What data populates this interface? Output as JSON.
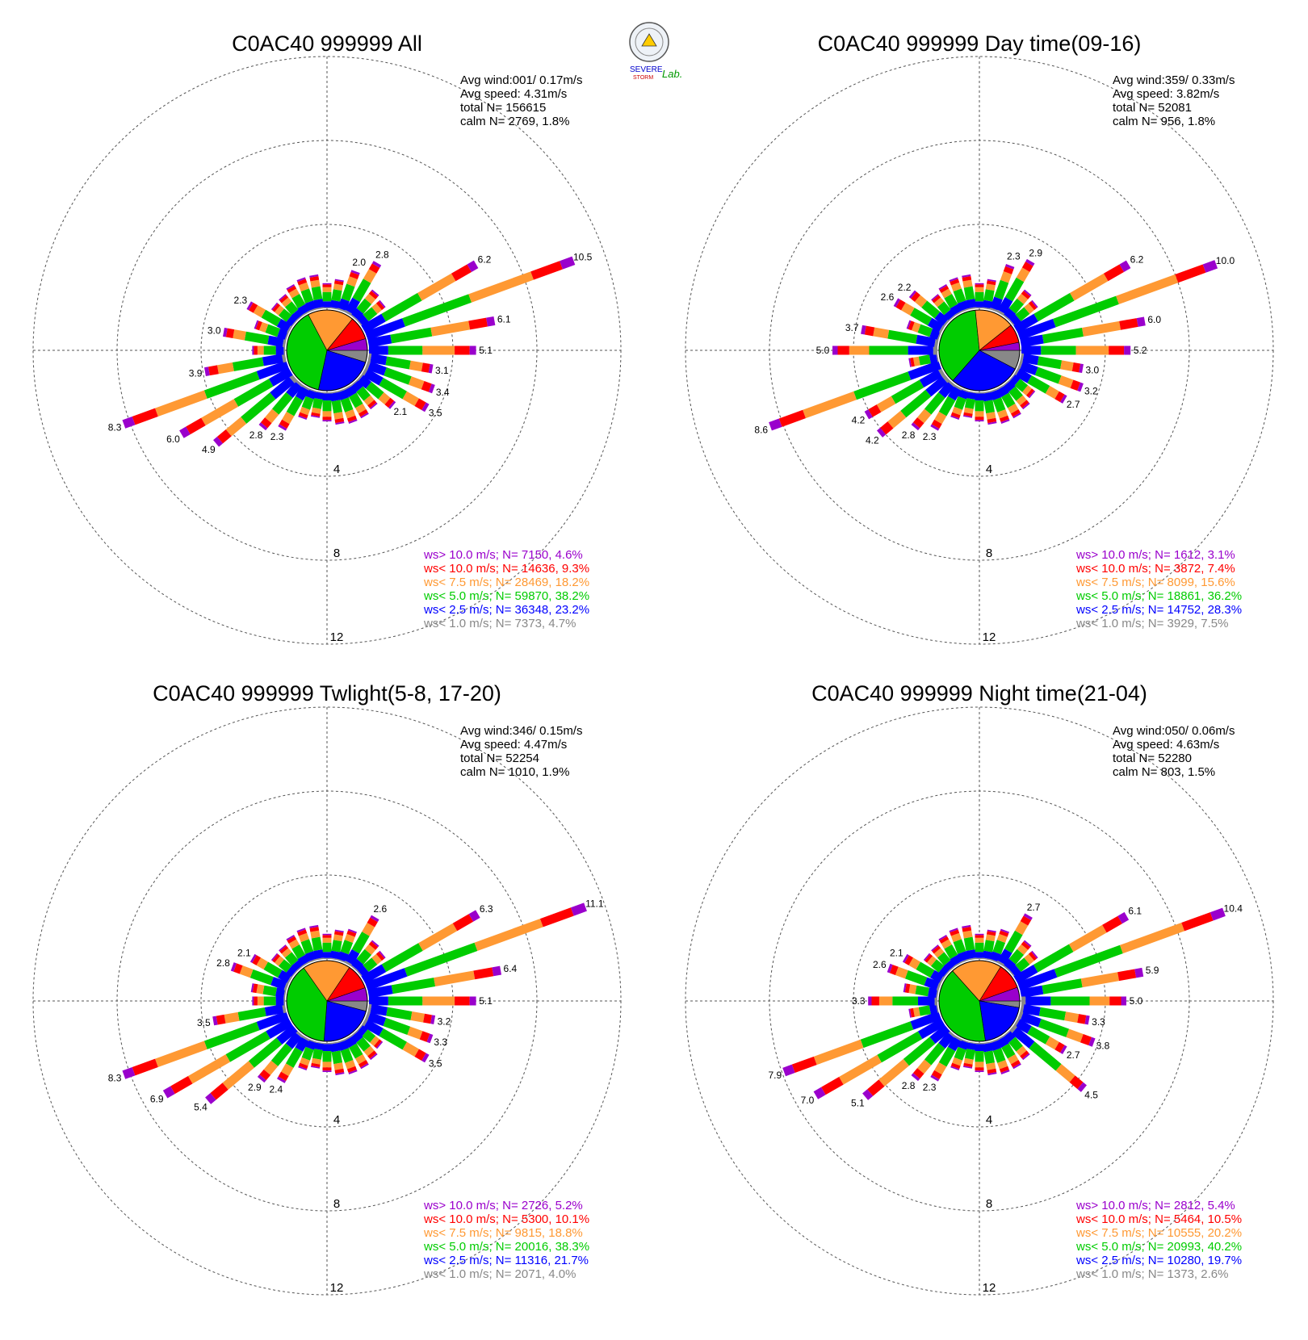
{
  "logo": {
    "line1": "SEVERE",
    "line2": "STORM",
    "line3": "Lab."
  },
  "colors": {
    "gt10": "#9a00cc",
    "lt10": "#ff0000",
    "lt75": "#ff9933",
    "lt5": "#00cc00",
    "lt25": "#0000ff",
    "lt1": "#888888"
  },
  "chart_data": [
    {
      "type": "wind-rose",
      "title": "C0AC40 999999 All",
      "stats": {
        "avg_wind": "Avg wind:001/ 0.17m/s",
        "avg_speed": "Avg speed: 4.31m/s",
        "total": "total N=      156615",
        "calm": "calm N=   2769,   1.8%"
      },
      "rings": [
        4,
        8,
        12
      ],
      "legend": [
        {
          "label": "ws> 10.0 m/s; N=  7150,  4.6%",
          "key": "gt10"
        },
        {
          "label": "ws< 10.0 m/s; N= 14636,  9.3%",
          "key": "lt10"
        },
        {
          "label": "ws<  7.5 m/s; N= 28469, 18.2%",
          "key": "lt75"
        },
        {
          "label": "ws<  5.0 m/s; N= 59870, 38.2%",
          "key": "lt5"
        },
        {
          "label": "ws<  2.5 m/s; N= 36348, 23.2%",
          "key": "lt25"
        },
        {
          "label": "ws<  1.0 m/s; N=  7373,  4.7%",
          "key": "lt1"
        }
      ],
      "calm_pie": [
        4.7,
        23.2,
        38.2,
        18.2,
        9.3,
        4.6
      ],
      "petal_labels": [
        {
          "dir": 70,
          "label": "10.5"
        },
        {
          "dir": 60,
          "label": "6.2"
        },
        {
          "dir": 80,
          "label": "6.1"
        },
        {
          "dir": 90,
          "label": "5.1"
        },
        {
          "dir": 100,
          "label": "3.1"
        },
        {
          "dir": 110,
          "label": "3.4"
        },
        {
          "dir": 120,
          "label": "3.5"
        },
        {
          "dir": 130,
          "label": "2.1"
        },
        {
          "dir": 30,
          "label": "2.8"
        },
        {
          "dir": 20,
          "label": "2.0"
        },
        {
          "dir": 250,
          "label": "8.3"
        },
        {
          "dir": 240,
          "label": "6.0"
        },
        {
          "dir": 230,
          "label": "4.9"
        },
        {
          "dir": 220,
          "label": "2.8"
        },
        {
          "dir": 210,
          "label": "2.3"
        },
        {
          "dir": 260,
          "label": "3.9"
        },
        {
          "dir": 280,
          "label": "3.0"
        },
        {
          "dir": 300,
          "label": "2.3"
        }
      ]
    },
    {
      "type": "wind-rose",
      "title": "C0AC40 999999 Day time(09-16)",
      "stats": {
        "avg_wind": "Avg wind:359/ 0.33m/s",
        "avg_speed": "Avg speed: 3.82m/s",
        "total": "total N=      52081",
        "calm": "calm N=    956,   1.8%"
      },
      "rings": [
        4,
        8,
        12
      ],
      "legend": [
        {
          "label": "ws> 10.0 m/s; N=  1612,  3.1%",
          "key": "gt10"
        },
        {
          "label": "ws< 10.0 m/s; N=  3872,  7.4%",
          "key": "lt10"
        },
        {
          "label": "ws<  7.5 m/s; N=  8099, 15.6%",
          "key": "lt75"
        },
        {
          "label": "ws<  5.0 m/s; N= 18861, 36.2%",
          "key": "lt5"
        },
        {
          "label": "ws<  2.5 m/s; N= 14752, 28.3%",
          "key": "lt25"
        },
        {
          "label": "ws<  1.0 m/s; N=  3929,  7.5%",
          "key": "lt1"
        }
      ],
      "calm_pie": [
        7.5,
        28.3,
        36.2,
        15.6,
        7.4,
        3.1
      ],
      "petal_labels": [
        {
          "dir": 70,
          "label": "10.0"
        },
        {
          "dir": 60,
          "label": "6.2"
        },
        {
          "dir": 80,
          "label": "6.0"
        },
        {
          "dir": 90,
          "label": "5.2"
        },
        {
          "dir": 100,
          "label": "3.0"
        },
        {
          "dir": 110,
          "label": "3.2"
        },
        {
          "dir": 120,
          "label": "2.7"
        },
        {
          "dir": 30,
          "label": "2.9"
        },
        {
          "dir": 20,
          "label": "2.3"
        },
        {
          "dir": 250,
          "label": "8.6"
        },
        {
          "dir": 240,
          "label": "4.2"
        },
        {
          "dir": 230,
          "label": "4.2"
        },
        {
          "dir": 220,
          "label": "2.8"
        },
        {
          "dir": 210,
          "label": "2.3"
        },
        {
          "dir": 270,
          "label": "5.0"
        },
        {
          "dir": 280,
          "label": "3.7"
        },
        {
          "dir": 300,
          "label": "2.6"
        },
        {
          "dir": 310,
          "label": "2.2"
        }
      ]
    },
    {
      "type": "wind-rose",
      "title": "C0AC40 999999 Twlight(5-8, 17-20)",
      "stats": {
        "avg_wind": "Avg wind:346/ 0.15m/s",
        "avg_speed": "Avg speed: 4.47m/s",
        "total": "total N=      52254",
        "calm": "calm N=   1010,   1.9%"
      },
      "rings": [
        4,
        8,
        12
      ],
      "legend": [
        {
          "label": "ws> 10.0 m/s; N=  2726,  5.2%",
          "key": "gt10"
        },
        {
          "label": "ws< 10.0 m/s; N=  5300, 10.1%",
          "key": "lt10"
        },
        {
          "label": "ws<  7.5 m/s; N=  9815, 18.8%",
          "key": "lt75"
        },
        {
          "label": "ws<  5.0 m/s; N= 20016, 38.3%",
          "key": "lt5"
        },
        {
          "label": "ws<  2.5 m/s; N= 11316, 21.7%",
          "key": "lt25"
        },
        {
          "label": "ws<  1.0 m/s; N=  2071,  4.0%",
          "key": "lt1"
        }
      ],
      "calm_pie": [
        4.0,
        21.7,
        38.3,
        18.8,
        10.1,
        5.2
      ],
      "petal_labels": [
        {
          "dir": 70,
          "label": "11.1"
        },
        {
          "dir": 60,
          "label": "6.3"
        },
        {
          "dir": 80,
          "label": "6.4"
        },
        {
          "dir": 90,
          "label": "5.1"
        },
        {
          "dir": 100,
          "label": "3.2"
        },
        {
          "dir": 110,
          "label": "3.3"
        },
        {
          "dir": 120,
          "label": "3.5"
        },
        {
          "dir": 30,
          "label": "2.6"
        },
        {
          "dir": 250,
          "label": "8.3"
        },
        {
          "dir": 240,
          "label": "6.9"
        },
        {
          "dir": 230,
          "label": "5.4"
        },
        {
          "dir": 220,
          "label": "2.9"
        },
        {
          "dir": 210,
          "label": "2.4"
        },
        {
          "dir": 260,
          "label": "3.5"
        },
        {
          "dir": 290,
          "label": "2.8"
        },
        {
          "dir": 300,
          "label": "2.1"
        }
      ]
    },
    {
      "type": "wind-rose",
      "title": "C0AC40 999999 Night time(21-04)",
      "stats": {
        "avg_wind": "Avg wind:050/ 0.06m/s",
        "avg_speed": "Avg speed: 4.63m/s",
        "total": "total N=      52280",
        "calm": "calm N=    803,   1.5%"
      },
      "rings": [
        4,
        8,
        12
      ],
      "legend": [
        {
          "label": "ws> 10.0 m/s; N=  2812,  5.4%",
          "key": "gt10"
        },
        {
          "label": "ws< 10.0 m/s; N=  5464, 10.5%",
          "key": "lt10"
        },
        {
          "label": "ws<  7.5 m/s; N= 10555, 20.2%",
          "key": "lt75"
        },
        {
          "label": "ws<  5.0 m/s; N= 20993, 40.2%",
          "key": "lt5"
        },
        {
          "label": "ws<  2.5 m/s; N= 10280, 19.7%",
          "key": "lt25"
        },
        {
          "label": "ws<  1.0 m/s; N=  1373,  2.6%",
          "key": "lt1"
        }
      ],
      "calm_pie": [
        2.6,
        19.7,
        40.2,
        20.2,
        10.5,
        5.4
      ],
      "petal_labels": [
        {
          "dir": 70,
          "label": "10.4"
        },
        {
          "dir": 60,
          "label": "6.1"
        },
        {
          "dir": 80,
          "label": "5.9"
        },
        {
          "dir": 90,
          "label": "5.0"
        },
        {
          "dir": 100,
          "label": "3.3"
        },
        {
          "dir": 110,
          "label": "3.8"
        },
        {
          "dir": 120,
          "label": "2.7"
        },
        {
          "dir": 130,
          "label": "4.5"
        },
        {
          "dir": 30,
          "label": "2.7"
        },
        {
          "dir": 250,
          "label": "7.9"
        },
        {
          "dir": 240,
          "label": "7.0"
        },
        {
          "dir": 230,
          "label": "5.1"
        },
        {
          "dir": 220,
          "label": "2.8"
        },
        {
          "dir": 210,
          "label": "2.3"
        },
        {
          "dir": 270,
          "label": "3.3"
        },
        {
          "dir": 290,
          "label": "2.6"
        },
        {
          "dir": 300,
          "label": "2.1"
        }
      ]
    }
  ]
}
